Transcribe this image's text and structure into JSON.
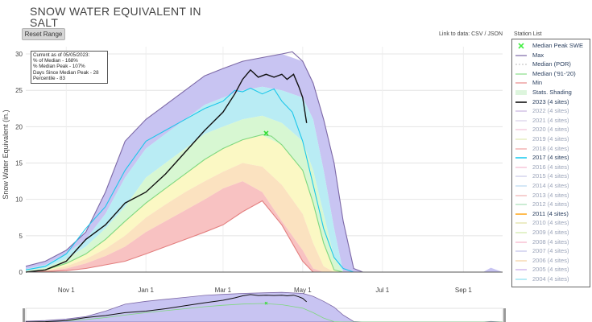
{
  "title_line1": "SNOW WATER EQUIVALENT IN",
  "title_line2": "SALT",
  "reset_label": "Reset Range",
  "links": {
    "prefix": "Link to data:",
    "csv": "CSV",
    "sep": "/",
    "json": "JSON"
  },
  "station_list_label": "Station List",
  "info": {
    "line1": "Current as of 05/05/2023:",
    "line2": "% of Median - 168%",
    "line3": "% Median Peak - 107%",
    "line4": "Days Since Median Peak - 28",
    "line5": "Percentile - 83"
  },
  "legend": [
    {
      "label": "Median Peak SWE",
      "sym": "x",
      "color": "#44ee44"
    },
    {
      "label": "Max",
      "sym": "line",
      "color": "#7c68a6"
    },
    {
      "label": "Median (POR)",
      "sym": "dash",
      "color": "#bbbbbb"
    },
    {
      "label": "Median ('91-'20)",
      "sym": "line",
      "color": "#88dd88"
    },
    {
      "label": "Min",
      "sym": "line",
      "color": "#e88a8a"
    },
    {
      "label": "Stats. Shading",
      "sym": "fill",
      "color": "#ddf5dd"
    },
    {
      "label": "2023 (4 sites)",
      "sym": "line",
      "color": "#111111",
      "dark": true
    },
    {
      "label": "2022 (4 sites)",
      "sym": "line",
      "color": "#c7b3e0"
    },
    {
      "label": "2021 (4 sites)",
      "sym": "line",
      "color": "#d8d0e8"
    },
    {
      "label": "2020 (4 sites)",
      "sym": "line",
      "color": "#f2c2d8"
    },
    {
      "label": "2019 (4 sites)",
      "sym": "line",
      "color": "#e0e8b0"
    },
    {
      "label": "2018 (4 sites)",
      "sym": "line",
      "color": "#f0a0a0"
    },
    {
      "label": "2017 (4 sites)",
      "sym": "line",
      "color": "#22ccee",
      "dark": true
    },
    {
      "label": "2016 (4 sites)",
      "sym": "line",
      "color": "#f4b9d0"
    },
    {
      "label": "2015 (4 sites)",
      "sym": "line",
      "color": "#c9c9e9"
    },
    {
      "label": "2014 (4 sites)",
      "sym": "line",
      "color": "#b8d8f0"
    },
    {
      "label": "2013 (4 sites)",
      "sym": "line",
      "color": "#f0b0b0"
    },
    {
      "label": "2012 (4 sites)",
      "sym": "line",
      "color": "#a8e0b8"
    },
    {
      "label": "2011 (4 sites)",
      "sym": "line",
      "color": "#ffaa22",
      "dark": true
    },
    {
      "label": "2010 (4 sites)",
      "sym": "line",
      "color": "#e0e0a0"
    },
    {
      "label": "2009 (4 sites)",
      "sym": "line",
      "color": "#d0e8a8"
    },
    {
      "label": "2008 (4 sites)",
      "sym": "line",
      "color": "#f7b2c8"
    },
    {
      "label": "2007 (4 sites)",
      "sym": "line",
      "color": "#c0c0e8"
    },
    {
      "label": "2006 (4 sites)",
      "sym": "line",
      "color": "#f5d0a0"
    },
    {
      "label": "2005 (4 sites)",
      "sym": "line",
      "color": "#c8a8e8"
    },
    {
      "label": "2004 (4 sites)",
      "sym": "line",
      "color": "#88ddee"
    }
  ],
  "chart_data": {
    "type": "line",
    "title": "SNOW WATER EQUIVALENT IN SALT",
    "ylabel": "Snow Water Equivalent (in.)",
    "xlabel": "",
    "ylim": [
      0,
      31
    ],
    "xlim": [
      "Oct 1",
      "Sep 30"
    ],
    "x_ticks": [
      {
        "day": 31,
        "label": "Nov 1"
      },
      {
        "day": 92,
        "label": "Jan 1"
      },
      {
        "day": 151,
        "label": "Mar 1"
      },
      {
        "day": 212,
        "label": "May 1"
      },
      {
        "day": 273,
        "label": "Jul 1"
      },
      {
        "day": 335,
        "label": "Sep 1"
      }
    ],
    "y_ticks": [
      0,
      5,
      10,
      15,
      20,
      25,
      30
    ],
    "median_peak": {
      "day": 184,
      "value": 19.1
    },
    "bands": {
      "days": [
        0,
        15,
        31,
        46,
        61,
        76,
        92,
        107,
        122,
        137,
        151,
        166,
        181,
        196,
        212,
        220,
        228,
        236,
        243,
        251,
        258,
        266,
        273,
        304,
        335,
        350,
        356,
        365
      ],
      "max": [
        0.8,
        1.5,
        3,
        5.5,
        11,
        18,
        21,
        23,
        25,
        27,
        28,
        29,
        29.5,
        30,
        29,
        26,
        21,
        15,
        7,
        0.5,
        0,
        0,
        0,
        0,
        0,
        0,
        0.6,
        0
      ],
      "p90": [
        0.4,
        1,
        2.5,
        4.5,
        8,
        13,
        17,
        19,
        21,
        23,
        24,
        25,
        25.5,
        25,
        24,
        21,
        14,
        6,
        0,
        0,
        0,
        0,
        0,
        0,
        0,
        0,
        0,
        0
      ],
      "p70": [
        0.2,
        0.6,
        1.8,
        3.5,
        6,
        9,
        13,
        15,
        17,
        19,
        20,
        21,
        21.5,
        20.5,
        18,
        14,
        8,
        2,
        0,
        0,
        0,
        0,
        0,
        0,
        0,
        0,
        0,
        0
      ],
      "p50": [
        0,
        0.3,
        1.2,
        2.5,
        4.5,
        7,
        9.5,
        11.5,
        13.5,
        15.5,
        17,
        18.2,
        18.8,
        17.5,
        14,
        9.5,
        4,
        0.3,
        0,
        0,
        0,
        0,
        0,
        0,
        0,
        0,
        0,
        0
      ],
      "p30": [
        0,
        0.2,
        0.8,
        1.8,
        3.2,
        5,
        7.5,
        9.3,
        11,
        12.5,
        13.8,
        15,
        14.5,
        12,
        8,
        4,
        0.8,
        0,
        0,
        0,
        0,
        0,
        0,
        0,
        0,
        0,
        0,
        0
      ],
      "p10": [
        0,
        0.1,
        0.5,
        1.2,
        2.2,
        3.5,
        5.5,
        7,
        8.5,
        10,
        11.5,
        12.5,
        11,
        7,
        3,
        0.5,
        0,
        0,
        0,
        0,
        0,
        0,
        0,
        0,
        0,
        0,
        0,
        0
      ],
      "min": [
        0,
        0,
        0.2,
        0.5,
        1,
        1.5,
        2.5,
        3.5,
        4.5,
        5.5,
        6.5,
        8.3,
        9.8,
        6.5,
        1.5,
        0,
        0,
        0,
        0,
        0,
        0,
        0,
        0,
        0,
        0,
        0,
        0,
        0
      ]
    },
    "series": [
      {
        "name": "Max",
        "color": "#7c68a6",
        "days": [
          0,
          15,
          31,
          46,
          61,
          76,
          92,
          107,
          122,
          137,
          151,
          166,
          181,
          196,
          204,
          212,
          220,
          228,
          236,
          243,
          251,
          258
        ],
        "values": [
          0.8,
          1.5,
          3,
          5.5,
          11,
          18,
          21,
          23,
          25,
          27,
          28,
          29,
          29.5,
          30,
          30.3,
          29,
          26,
          21,
          15,
          7,
          0.5,
          0
        ]
      },
      {
        "name": "Median ('91-'20)",
        "color": "#7fd87f",
        "days": [
          0,
          15,
          31,
          46,
          61,
          76,
          92,
          107,
          122,
          137,
          151,
          166,
          181,
          188,
          196,
          212,
          220,
          228,
          236,
          243
        ],
        "values": [
          0,
          0.3,
          1.2,
          2.5,
          4.5,
          7,
          9.5,
          11.5,
          13.5,
          15.5,
          17,
          18.2,
          18.9,
          18.7,
          17.5,
          14,
          9.5,
          4,
          0.3,
          0
        ]
      },
      {
        "name": "Min",
        "color": "#e37f7f",
        "days": [
          0,
          31,
          46,
          61,
          76,
          92,
          107,
          122,
          137,
          151,
          166,
          181,
          196,
          212,
          220
        ],
        "values": [
          0,
          0.2,
          0.5,
          1,
          1.5,
          2.5,
          3.5,
          4.5,
          5.5,
          6.5,
          8.3,
          9.8,
          6.5,
          1.5,
          0
        ]
      },
      {
        "name": "2017 (4 sites)",
        "color": "#1cc7ea",
        "days": [
          0,
          15,
          31,
          46,
          61,
          76,
          92,
          107,
          122,
          137,
          151,
          160,
          166,
          172,
          181,
          190,
          196,
          204,
          212,
          220,
          228,
          236,
          243,
          251
        ],
        "values": [
          0.3,
          0.8,
          2.5,
          6,
          9,
          14,
          18,
          19.5,
          21,
          22.5,
          23.5,
          25,
          24.8,
          25.3,
          24.5,
          25.2,
          23.5,
          22,
          18,
          12,
          6,
          2,
          0.5,
          0
        ]
      },
      {
        "name": "2023 (4 sites)",
        "color": "#111111",
        "days": [
          0,
          15,
          31,
          46,
          61,
          76,
          92,
          107,
          122,
          137,
          151,
          160,
          166,
          172,
          178,
          184,
          190,
          196,
          200,
          205,
          209,
          212,
          215
        ],
        "values": [
          0,
          0.3,
          1.5,
          4.5,
          6.5,
          9.5,
          11,
          13.5,
          16.5,
          19.5,
          22,
          24.5,
          26.5,
          27.8,
          26.8,
          27.2,
          26.8,
          27.2,
          26.5,
          27.2,
          25.5,
          24,
          20.5
        ]
      }
    ]
  }
}
